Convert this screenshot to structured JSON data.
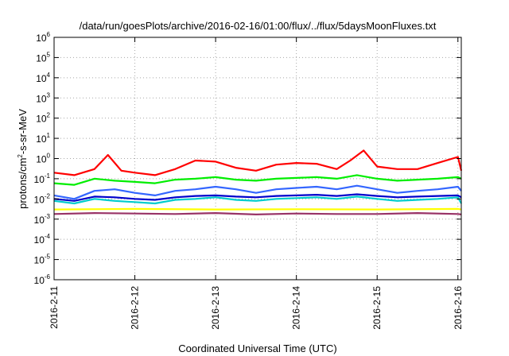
{
  "chart_data": {
    "type": "line",
    "title": "/data/run/goesPlots/archive/2016-02-16/01:00/flux/../flux/5daysMoonFluxes.txt",
    "xlabel": "Coordinated Universal Time (UTC)",
    "ylabel": "protons/cm²-s-sr-MeV",
    "ylabel_parts": {
      "pre": "protons/cm",
      "sup": "2",
      "post": "-s-sr-MeV"
    },
    "y_scale": "log",
    "ylim": [
      1e-06,
      1000000.0
    ],
    "y_ticks": [
      {
        "base": "10",
        "exp": "-6"
      },
      {
        "base": "10",
        "exp": "-5"
      },
      {
        "base": "10",
        "exp": "-4"
      },
      {
        "base": "10",
        "exp": "-3"
      },
      {
        "base": "10",
        "exp": "-2"
      },
      {
        "base": "10",
        "exp": "-1"
      },
      {
        "base": "10",
        "exp": "0"
      },
      {
        "base": "10",
        "exp": "1"
      },
      {
        "base": "10",
        "exp": "2"
      },
      {
        "base": "10",
        "exp": "3"
      },
      {
        "base": "10",
        "exp": "4"
      },
      {
        "base": "10",
        "exp": "5"
      },
      {
        "base": "10",
        "exp": "6"
      }
    ],
    "x_ticks": [
      "2016-2-11",
      "2016-2-12",
      "2016-2-13",
      "2016-2-14",
      "2016-2-15",
      "2016-2-16"
    ],
    "xlim": [
      "2016-02-11T00:00",
      "2016-02-16T01:00"
    ],
    "grid": true,
    "series": [
      {
        "color": "#ff0000",
        "x": [
          "2016-02-11T00:00",
          "2016-02-11T06:00",
          "2016-02-11T12:00",
          "2016-02-11T16:00",
          "2016-02-11T20:00",
          "2016-02-12T00:00",
          "2016-02-12T06:00",
          "2016-02-12T12:00",
          "2016-02-12T18:00",
          "2016-02-13T00:00",
          "2016-02-13T06:00",
          "2016-02-13T12:00",
          "2016-02-13T18:00",
          "2016-02-14T00:00",
          "2016-02-14T06:00",
          "2016-02-14T12:00",
          "2016-02-14T16:00",
          "2016-02-14T20:00",
          "2016-02-15T00:00",
          "2016-02-15T06:00",
          "2016-02-15T12:00",
          "2016-02-15T18:00",
          "2016-02-16T00:00",
          "2016-02-16T01:00"
        ],
        "values": [
          0.2,
          0.15,
          0.3,
          1.5,
          0.25,
          0.2,
          0.15,
          0.3,
          0.8,
          0.7,
          0.35,
          0.25,
          0.5,
          0.6,
          0.55,
          0.3,
          0.8,
          2.5,
          0.4,
          0.3,
          0.3,
          0.6,
          1.2,
          0.25
        ]
      },
      {
        "color": "#00ee00",
        "x": [
          "2016-02-11T00:00",
          "2016-02-11T06:00",
          "2016-02-11T12:00",
          "2016-02-11T18:00",
          "2016-02-12T00:00",
          "2016-02-12T06:00",
          "2016-02-12T12:00",
          "2016-02-12T18:00",
          "2016-02-13T00:00",
          "2016-02-13T06:00",
          "2016-02-13T12:00",
          "2016-02-13T18:00",
          "2016-02-14T00:00",
          "2016-02-14T06:00",
          "2016-02-14T12:00",
          "2016-02-14T18:00",
          "2016-02-15T00:00",
          "2016-02-15T06:00",
          "2016-02-15T12:00",
          "2016-02-15T18:00",
          "2016-02-16T00:00",
          "2016-02-16T01:00"
        ],
        "values": [
          0.06,
          0.05,
          0.1,
          0.08,
          0.07,
          0.06,
          0.09,
          0.1,
          0.12,
          0.09,
          0.08,
          0.1,
          0.11,
          0.12,
          0.1,
          0.15,
          0.1,
          0.08,
          0.09,
          0.1,
          0.12,
          0.1
        ]
      },
      {
        "color": "#00cccc",
        "x": [
          "2016-02-11T00:00",
          "2016-02-11T06:00",
          "2016-02-11T12:00",
          "2016-02-11T18:00",
          "2016-02-12T00:00",
          "2016-02-12T06:00",
          "2016-02-12T12:00",
          "2016-02-12T18:00",
          "2016-02-13T00:00",
          "2016-02-13T06:00",
          "2016-02-13T12:00",
          "2016-02-13T18:00",
          "2016-02-14T00:00",
          "2016-02-14T06:00",
          "2016-02-14T12:00",
          "2016-02-14T18:00",
          "2016-02-15T00:00",
          "2016-02-15T06:00",
          "2016-02-15T12:00",
          "2016-02-15T18:00",
          "2016-02-16T00:00",
          "2016-02-16T01:00"
        ],
        "values": [
          0.008,
          0.006,
          0.01,
          0.008,
          0.007,
          0.006,
          0.009,
          0.01,
          0.012,
          0.009,
          0.008,
          0.01,
          0.011,
          0.012,
          0.01,
          0.013,
          0.01,
          0.008,
          0.009,
          0.01,
          0.012,
          0.006
        ]
      },
      {
        "color": "#3366ff",
        "x": [
          "2016-02-11T00:00",
          "2016-02-11T06:00",
          "2016-02-11T12:00",
          "2016-02-11T18:00",
          "2016-02-12T00:00",
          "2016-02-12T06:00",
          "2016-02-12T12:00",
          "2016-02-12T18:00",
          "2016-02-13T00:00",
          "2016-02-13T06:00",
          "2016-02-13T12:00",
          "2016-02-13T18:00",
          "2016-02-14T00:00",
          "2016-02-14T06:00",
          "2016-02-14T12:00",
          "2016-02-14T18:00",
          "2016-02-15T00:00",
          "2016-02-15T06:00",
          "2016-02-15T12:00",
          "2016-02-15T18:00",
          "2016-02-16T00:00",
          "2016-02-16T01:00"
        ],
        "values": [
          0.015,
          0.01,
          0.025,
          0.03,
          0.02,
          0.015,
          0.025,
          0.03,
          0.04,
          0.03,
          0.02,
          0.03,
          0.035,
          0.04,
          0.03,
          0.045,
          0.03,
          0.02,
          0.025,
          0.03,
          0.04,
          0.025
        ]
      },
      {
        "color": "#0000cc",
        "x": [
          "2016-02-11T00:00",
          "2016-02-11T06:00",
          "2016-02-11T12:00",
          "2016-02-11T18:00",
          "2016-02-12T00:00",
          "2016-02-12T06:00",
          "2016-02-12T12:00",
          "2016-02-12T18:00",
          "2016-02-13T00:00",
          "2016-02-13T06:00",
          "2016-02-13T12:00",
          "2016-02-13T18:00",
          "2016-02-14T00:00",
          "2016-02-14T06:00",
          "2016-02-14T12:00",
          "2016-02-14T18:00",
          "2016-02-15T00:00",
          "2016-02-15T06:00",
          "2016-02-15T12:00",
          "2016-02-15T18:00",
          "2016-02-16T00:00",
          "2016-02-16T01:00"
        ],
        "values": [
          0.01,
          0.008,
          0.013,
          0.012,
          0.01,
          0.009,
          0.012,
          0.014,
          0.015,
          0.013,
          0.012,
          0.014,
          0.015,
          0.016,
          0.014,
          0.017,
          0.014,
          0.012,
          0.013,
          0.014,
          0.015,
          0.012
        ]
      },
      {
        "color": "#ffff00",
        "x": [
          "2016-02-11T00:00",
          "2016-02-12T00:00",
          "2016-02-13T00:00",
          "2016-02-14T00:00",
          "2016-02-15T00:00",
          "2016-02-16T00:00",
          "2016-02-16T01:00"
        ],
        "values": [
          0.003,
          0.0032,
          0.003,
          0.0031,
          0.003,
          0.0032,
          0.003
        ]
      },
      {
        "color": "#993366",
        "x": [
          "2016-02-11T00:00",
          "2016-02-11T12:00",
          "2016-02-12T00:00",
          "2016-02-12T12:00",
          "2016-02-13T00:00",
          "2016-02-13T12:00",
          "2016-02-14T00:00",
          "2016-02-14T12:00",
          "2016-02-15T00:00",
          "2016-02-15T12:00",
          "2016-02-16T00:00",
          "2016-02-16T01:00"
        ],
        "values": [
          0.0018,
          0.002,
          0.0019,
          0.0018,
          0.002,
          0.0017,
          0.0019,
          0.0018,
          0.0018,
          0.002,
          0.0018,
          0.0017
        ]
      }
    ]
  }
}
